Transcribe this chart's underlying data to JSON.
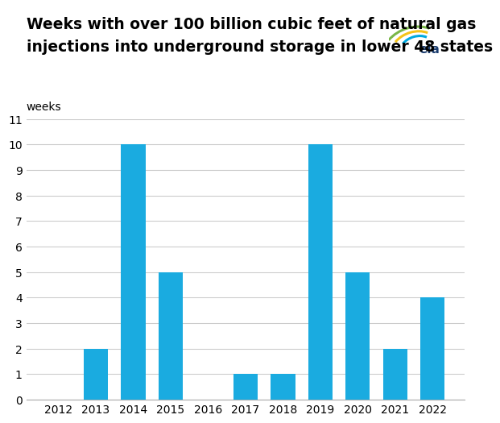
{
  "title_line1": "Weeks with over 100 billion cubic feet of natural gas",
  "title_line2": "injections into underground storage in lower 48 states",
  "ylabel": "weeks",
  "categories": [
    2012,
    2013,
    2014,
    2015,
    2016,
    2017,
    2018,
    2019,
    2020,
    2021,
    2022
  ],
  "values": [
    0,
    2,
    10,
    5,
    0,
    1,
    1,
    10,
    5,
    2,
    4
  ],
  "bar_color": "#1aabe0",
  "ylim": [
    0,
    11
  ],
  "yticks": [
    0,
    1,
    2,
    3,
    4,
    5,
    6,
    7,
    8,
    9,
    10,
    11
  ],
  "background_color": "#ffffff",
  "title_fontsize": 13.5,
  "ylabel_fontsize": 10,
  "tick_fontsize": 10,
  "grid_color": "#cccccc",
  "logo_green": "#7ab648",
  "logo_yellow": "#f5c318",
  "logo_blue": "#00a9e0",
  "logo_text_color": "#1a3c6e"
}
